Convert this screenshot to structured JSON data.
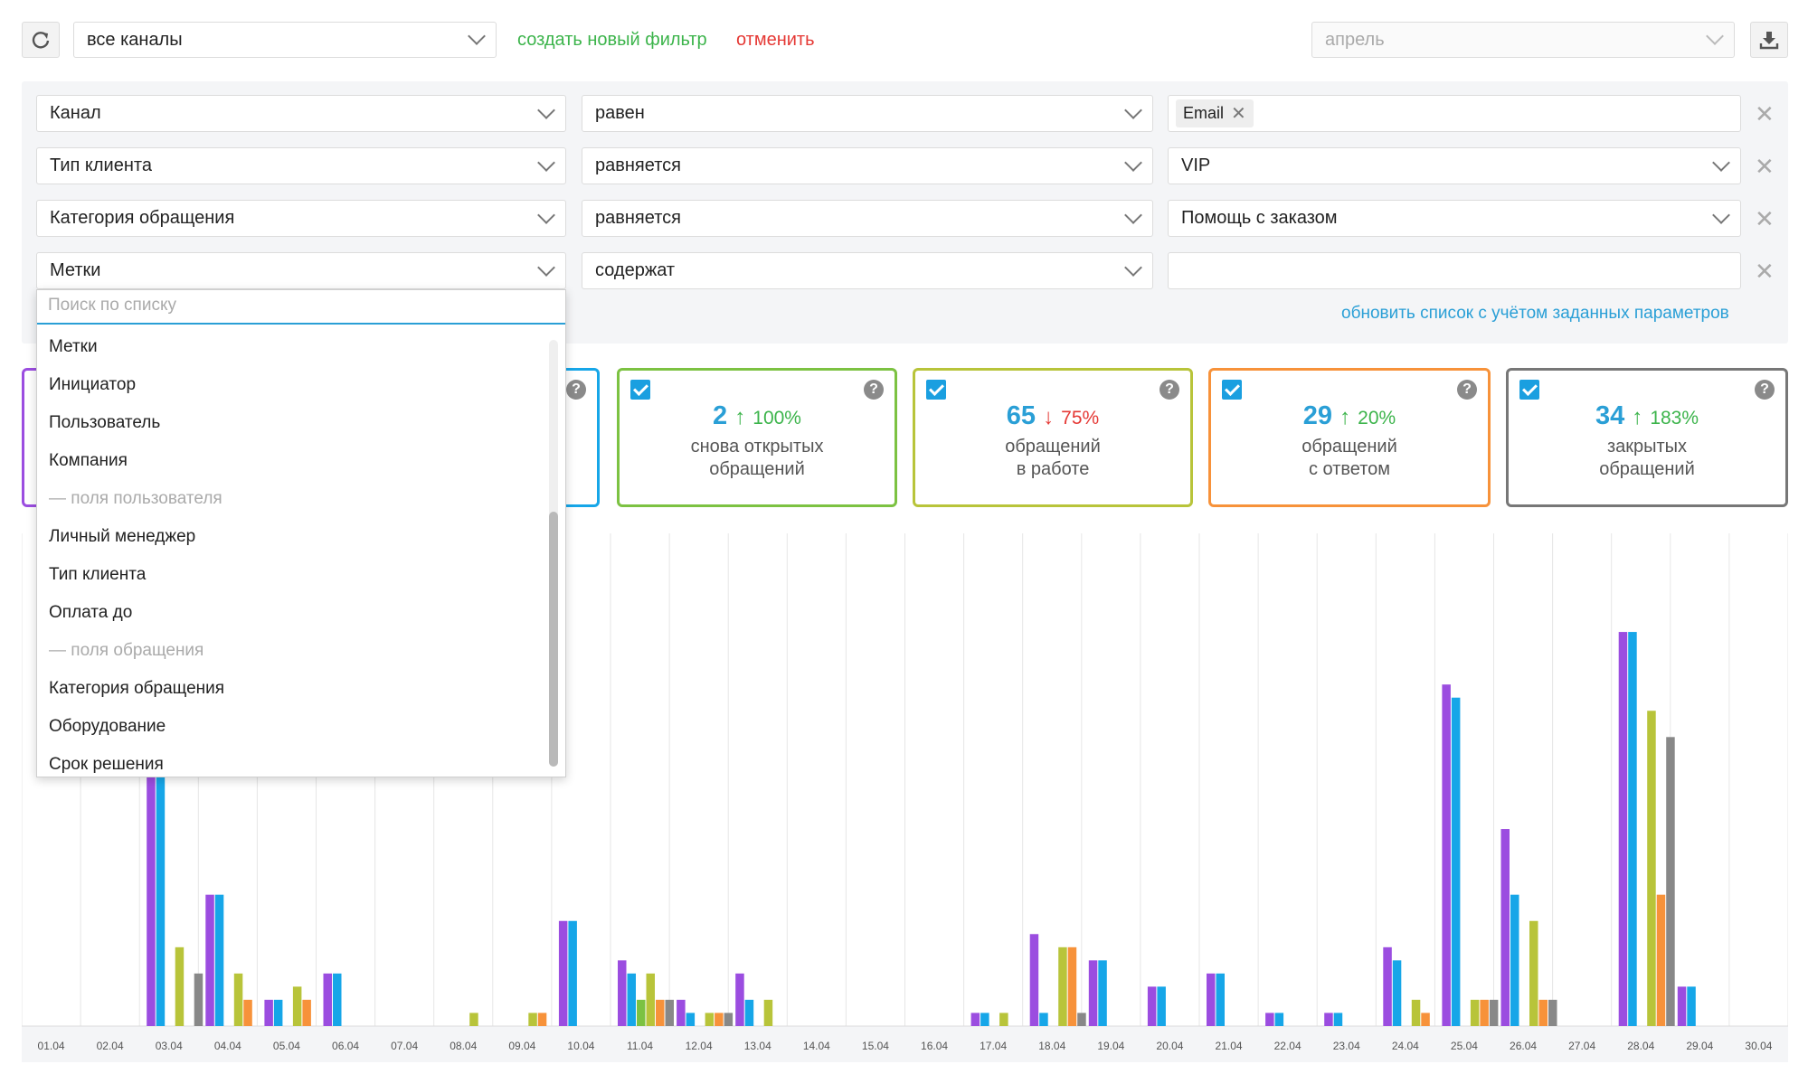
{
  "toolbar": {
    "channel_select": "все каналы",
    "create_filter": "создать новый фильтр",
    "cancel": "отменить",
    "month_select": "апрель",
    "colors": {
      "green": "#3cb44b",
      "red": "#e53935"
    }
  },
  "filters": [
    {
      "field": "Канал",
      "op": "равен",
      "value": "",
      "chip": "Email"
    },
    {
      "field": "Тип клиента",
      "op": "равняется",
      "value": "VIP"
    },
    {
      "field": "Категория обращения",
      "op": "равняется",
      "value": "Помощь с заказом"
    },
    {
      "field": "Метки",
      "op": "содержат",
      "value": ""
    }
  ],
  "update_link": "обновить список с учётом заданных параметров",
  "dropdown": {
    "search_placeholder": "Поиск по списку",
    "items": [
      {
        "label": "Метки",
        "group": false
      },
      {
        "label": "Инициатор",
        "group": false
      },
      {
        "label": "Пользователь",
        "group": false
      },
      {
        "label": "Компания",
        "group": false
      },
      {
        "label": "— поля пользователя",
        "group": true
      },
      {
        "label": "Личный менеджер",
        "group": false
      },
      {
        "label": "Тип клиента",
        "group": false
      },
      {
        "label": "Оплата до",
        "group": false
      },
      {
        "label": "— поля обращения",
        "group": true
      },
      {
        "label": "Категория обращения",
        "group": false
      },
      {
        "label": "Оборудование",
        "group": false
      },
      {
        "label": "Срок решения",
        "group": false
      }
    ]
  },
  "cards": [
    {
      "value": "2",
      "arrow": "up",
      "pct": "100%",
      "line1": "снова открытых",
      "line2": "обращений",
      "color": "#7cc242"
    },
    {
      "value": "65",
      "arrow": "down",
      "pct": "75%",
      "line1": "обращений",
      "line2": "в работе",
      "color": "#b8c43a"
    },
    {
      "value": "29",
      "arrow": "up",
      "pct": "20%",
      "line1": "обращений",
      "line2": "с ответом",
      "color": "#f7923a"
    },
    {
      "value": "34",
      "arrow": "up",
      "pct": "183%",
      "line1": "закрытых",
      "line2": "обращений",
      "color": "#777777"
    }
  ],
  "chart_data": {
    "type": "bar",
    "categories": [
      "01.04",
      "02.04",
      "03.04",
      "04.04",
      "05.04",
      "06.04",
      "07.04",
      "08.04",
      "09.04",
      "10.04",
      "11.04",
      "12.04",
      "13.04",
      "14.04",
      "15.04",
      "16.04",
      "17.04",
      "18.04",
      "19.04",
      "20.04",
      "21.04",
      "22.04",
      "23.04",
      "24.04",
      "25.04",
      "26.04",
      "27.04",
      "28.04",
      "29.04",
      "30.04"
    ],
    "series": [
      {
        "color": "#9b4de0",
        "values": [
          0,
          0,
          30,
          10,
          2,
          4,
          0,
          0,
          0,
          8,
          5,
          2,
          4,
          0,
          0,
          0,
          1,
          7,
          5,
          3,
          4,
          1,
          1,
          6,
          26,
          15,
          0,
          30,
          3,
          0
        ]
      },
      {
        "color": "#16a6e8",
        "values": [
          0,
          0,
          30,
          10,
          2,
          4,
          0,
          0,
          0,
          8,
          4,
          1,
          2,
          0,
          0,
          0,
          1,
          1,
          5,
          3,
          4,
          1,
          1,
          5,
          25,
          10,
          0,
          30,
          3,
          0
        ]
      },
      {
        "color": "#7cc242",
        "values": [
          0,
          0,
          0,
          0,
          0,
          0,
          0,
          0,
          0,
          0,
          2,
          0,
          0,
          0,
          0,
          0,
          0,
          0,
          0,
          0,
          0,
          0,
          0,
          0,
          0,
          0,
          0,
          0,
          0,
          0
        ]
      },
      {
        "color": "#b8c43a",
        "values": [
          0,
          0,
          6,
          4,
          3,
          0,
          0,
          1,
          1,
          0,
          4,
          1,
          2,
          0,
          0,
          0,
          1,
          6,
          0,
          0,
          0,
          0,
          0,
          2,
          2,
          8,
          0,
          24,
          0,
          0
        ]
      },
      {
        "color": "#f7923a",
        "values": [
          0,
          0,
          0,
          2,
          2,
          0,
          0,
          0,
          1,
          0,
          2,
          1,
          0,
          0,
          0,
          0,
          0,
          6,
          0,
          0,
          0,
          0,
          0,
          1,
          2,
          2,
          0,
          10,
          0,
          0
        ]
      },
      {
        "color": "#888888",
        "values": [
          0,
          0,
          4,
          0,
          0,
          0,
          0,
          0,
          0,
          0,
          2,
          1,
          0,
          0,
          0,
          0,
          0,
          1,
          0,
          0,
          0,
          0,
          0,
          0,
          2,
          2,
          0,
          22,
          0,
          0
        ]
      }
    ]
  }
}
